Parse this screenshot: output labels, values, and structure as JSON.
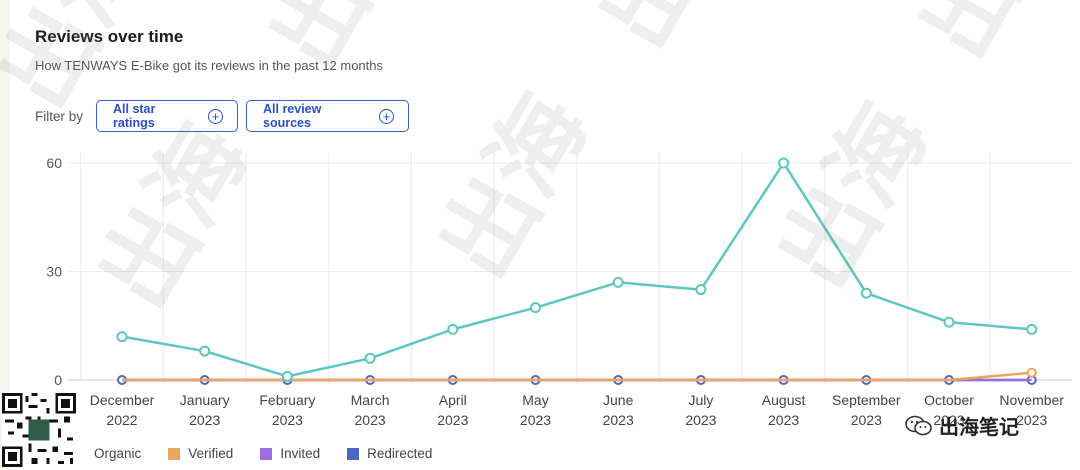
{
  "header": {
    "title": "Reviews over time",
    "subtitle": "How TENWAYS E-Bike got its reviews in the past 12 months"
  },
  "filters": {
    "label": "Filter by",
    "star_ratings": "All star ratings",
    "review_sources": "All review sources"
  },
  "chart_data": {
    "type": "line",
    "title": "Reviews over time",
    "categories": [
      [
        "December",
        "2022"
      ],
      [
        "January",
        "2023"
      ],
      [
        "February",
        "2023"
      ],
      [
        "March",
        "2023"
      ],
      [
        "April",
        "2023"
      ],
      [
        "May",
        "2023"
      ],
      [
        "June",
        "2023"
      ],
      [
        "July",
        "2023"
      ],
      [
        "August",
        "2023"
      ],
      [
        "September",
        "2023"
      ],
      [
        "October",
        "2023"
      ],
      [
        "November",
        "2023"
      ]
    ],
    "ylim": [
      0,
      60
    ],
    "yticks": [
      0,
      30,
      60
    ],
    "grid": true,
    "legend_position": "bottom-left",
    "series": [
      {
        "name": "Organic",
        "color": "#5cc7c2",
        "values": [
          12,
          8,
          1,
          6,
          14,
          20,
          27,
          25,
          60,
          24,
          16,
          14
        ]
      },
      {
        "name": "Verified",
        "color": "#e8a75c",
        "values": [
          0,
          0,
          0,
          0,
          0,
          0,
          0,
          0,
          0,
          0,
          0,
          2
        ]
      },
      {
        "name": "Invited",
        "color": "#9b6ee0",
        "values": [
          0,
          0,
          0,
          0,
          0,
          0,
          0,
          0,
          0,
          0,
          0,
          0
        ]
      },
      {
        "name": "Redirected",
        "color": "#4e67c4",
        "values": [
          0,
          0,
          0,
          0,
          0,
          0,
          0,
          0,
          0,
          0,
          0,
          0
        ]
      }
    ]
  },
  "watermark": {
    "text": "出海笔记"
  },
  "icons": {
    "plus": "+",
    "qr": "qr-code-icon",
    "wechat": "wechat-icon"
  }
}
